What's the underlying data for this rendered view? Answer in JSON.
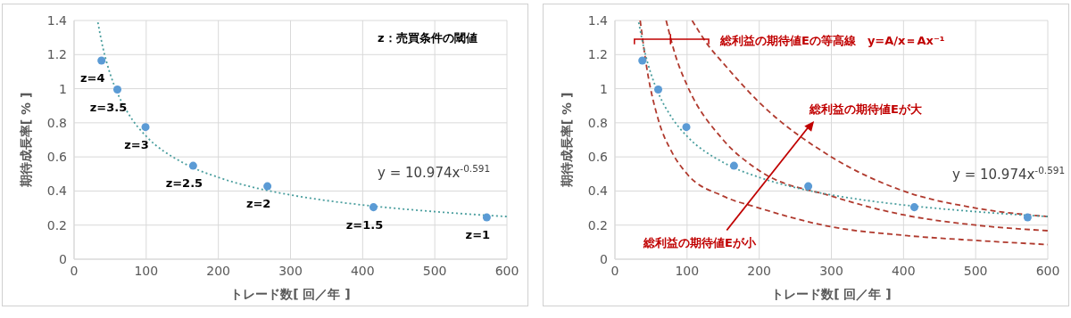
{
  "chart_data": [
    {
      "type": "scatter",
      "xlabel": "トレード数[ 回／年 ]",
      "ylabel": "期待成長率[ % ]",
      "xlim": [
        0,
        600
      ],
      "xticks": [
        0,
        100,
        200,
        300,
        400,
        500,
        600
      ],
      "ylim": [
        0,
        1.4
      ],
      "yticks": [
        0,
        0.2,
        0.4,
        0.6,
        0.8,
        1,
        1.2,
        1.4
      ],
      "grid": true,
      "legend": false,
      "series": [
        {
          "color": "#5b9bd5",
          "marker": "circle",
          "x": [
            38,
            60,
            99,
            165,
            268,
            415,
            572
          ],
          "values": [
            1.165,
            0.995,
            0.775,
            0.548,
            0.428,
            0.305,
            0.245
          ]
        },
        {
          "type": "line",
          "color": "#4a9e9e",
          "line_style": "dotted",
          "marker": "none",
          "x": [
            33,
            40,
            50,
            60,
            80,
            100,
            150,
            200,
            250,
            300,
            400,
            500,
            600
          ],
          "values": [
            1.389,
            1.24,
            1.087,
            0.976,
            0.823,
            0.721,
            0.568,
            0.48,
            0.42,
            0.377,
            0.318,
            0.279,
            0.25
          ]
        }
      ],
      "annotations": [
        {
          "text": "z=4",
          "x": 38,
          "y": 1.165
        },
        {
          "text": "z=3.5",
          "x": 60,
          "y": 0.995
        },
        {
          "text": "z=3",
          "x": 99,
          "y": 0.775
        },
        {
          "text": "z=2.5",
          "x": 165,
          "y": 0.548
        },
        {
          "text": "z=2",
          "x": 268,
          "y": 0.428
        },
        {
          "text": "z=1.5",
          "x": 415,
          "y": 0.305
        },
        {
          "text": "z=1",
          "x": 572,
          "y": 0.245
        },
        "z：売買条件の閾値",
        "y = 10.974x$^{-0.591}$"
      ]
    },
    {
      "type": "scatter",
      "xlabel": "トレード数[ 回／年 ]",
      "ylabel": "期待成長率[ % ]",
      "xlim": [
        0,
        600
      ],
      "xticks": [
        0,
        100,
        200,
        300,
        400,
        500,
        600
      ],
      "ylim": [
        0,
        1.4
      ],
      "yticks": [
        0,
        0.2,
        0.4,
        0.6,
        0.8,
        1,
        1.2,
        1.4
      ],
      "grid": true,
      "legend": false,
      "series": [
        {
          "type": "line",
          "color": "#b03a2e",
          "line_style": "dashed",
          "marker": "none",
          "x": [
            35,
            45,
            60,
            80,
            100,
            150,
            200,
            300,
            400,
            500,
            600
          ],
          "values": [
            1.4,
            1.1,
            0.82,
            0.62,
            0.5,
            0.37,
            0.3,
            0.19,
            0.14,
            0.11,
            0.086
          ]
        },
        {
          "type": "line",
          "color": "#b03a2e",
          "line_style": "dashed",
          "marker": "none",
          "x": [
            71,
            85,
            100,
            150,
            200,
            300,
            400,
            500,
            600
          ],
          "values": [
            1.4,
            1.18,
            1.02,
            0.7,
            0.52,
            0.37,
            0.26,
            0.2,
            0.167
          ]
        },
        {
          "type": "line",
          "color": "#b03a2e",
          "line_style": "dashed",
          "marker": "none",
          "x": [
            107,
            130,
            150,
            200,
            300,
            400,
            500,
            600
          ],
          "values": [
            1.4,
            1.25,
            1.15,
            0.92,
            0.6,
            0.4,
            0.3,
            0.25
          ]
        },
        {
          "color": "#5b9bd5",
          "marker": "circle",
          "x": [
            38,
            60,
            99,
            165,
            268,
            415,
            572
          ],
          "values": [
            1.165,
            0.995,
            0.775,
            0.548,
            0.428,
            0.305,
            0.245
          ]
        },
        {
          "type": "line",
          "color": "#4a9e9e",
          "line_style": "dotted",
          "marker": "none",
          "x": [
            33,
            40,
            50,
            60,
            80,
            100,
            150,
            200,
            250,
            300,
            400,
            500,
            600
          ],
          "values": [
            1.389,
            1.24,
            1.087,
            0.976,
            0.823,
            0.721,
            0.568,
            0.48,
            0.42,
            0.377,
            0.318,
            0.279,
            0.25
          ]
        }
      ],
      "annotations": [
        "総利益の期待値Eの等高線　y=A/x＝Ax⁻¹",
        "総利益の期待値Eが大",
        "総利益の期待値Eが小",
        "y = 10.974x$^{-0.591}$"
      ]
    }
  ]
}
